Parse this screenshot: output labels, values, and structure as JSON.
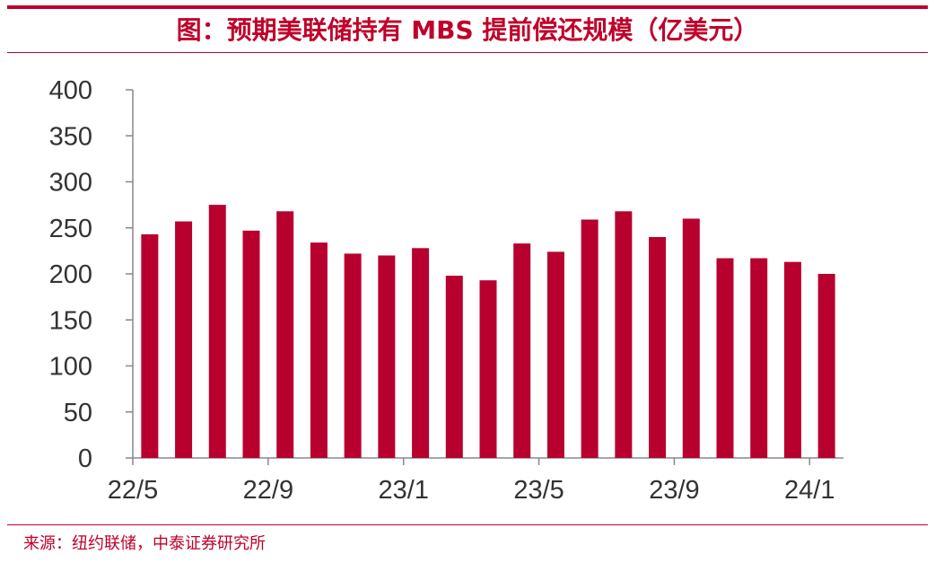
{
  "title": "图：预期美联储持有 MBS 提前偿还规模（亿美元）",
  "source": "来源：纽约联储，中泰证券研究所",
  "colors": {
    "accent": "#c0002a",
    "bar": "#b8002f",
    "axis": "#888888",
    "text": "#333333"
  },
  "chart_data": {
    "type": "bar",
    "title": "预期美联储持有 MBS 提前偿还规模（亿美元）",
    "xlabel": "",
    "ylabel": "",
    "ylim": [
      0,
      400
    ],
    "yticks": [
      0,
      50,
      100,
      150,
      200,
      250,
      300,
      350,
      400
    ],
    "xtick_labels": [
      "22/5",
      "22/9",
      "23/1",
      "23/5",
      "23/9",
      "24/1"
    ],
    "categories": [
      "22/5",
      "22/6",
      "22/7",
      "22/8",
      "22/9",
      "22/10",
      "22/11",
      "22/12",
      "23/1",
      "23/2",
      "23/3",
      "23/4",
      "23/5",
      "23/6",
      "23/7",
      "23/8",
      "23/9",
      "23/10",
      "23/11",
      "23/12",
      "24/1"
    ],
    "values": [
      243,
      257,
      275,
      247,
      268,
      234,
      222,
      220,
      228,
      198,
      193,
      233,
      224,
      259,
      268,
      240,
      260,
      217,
      217,
      213,
      200
    ],
    "grid": false,
    "legend": "none"
  }
}
